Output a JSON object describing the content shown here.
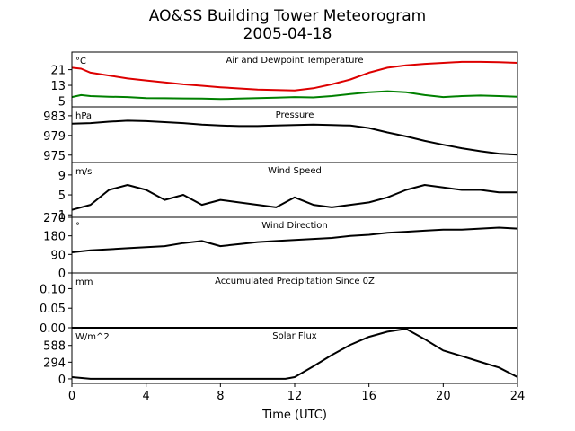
{
  "title": "AO&SS Building Tower Meteorogram",
  "subtitle": "2005-04-18",
  "xlabel": "Time (UTC)",
  "x_ticks": [
    "0",
    "4",
    "8",
    "12",
    "16",
    "20",
    "24"
  ],
  "chart_data": [
    {
      "type": "line",
      "title": "Air and Dewpoint Temperature",
      "unit": "°C",
      "x": [
        0,
        0.5,
        1,
        2,
        3,
        4,
        5,
        6,
        7,
        8,
        9,
        10,
        11,
        12,
        13,
        14,
        15,
        16,
        17,
        18,
        19,
        20,
        21,
        22,
        23,
        24
      ],
      "series": [
        {
          "color": "#dd0000",
          "values": [
            22,
            21.5,
            19.5,
            18,
            16.5,
            15.5,
            14.5,
            13.5,
            12.8,
            12,
            11.4,
            10.8,
            10.6,
            10.4,
            11.5,
            13.5,
            16,
            19.5,
            22,
            23.2,
            24,
            24.5,
            25,
            25,
            24.8,
            24.5
          ]
        },
        {
          "color": "#008000",
          "values": [
            7,
            8,
            7.5,
            7.2,
            7,
            6.5,
            6.4,
            6.3,
            6.2,
            6,
            6.2,
            6.5,
            6.7,
            7,
            6.8,
            7.5,
            8.5,
            9.5,
            10,
            9.5,
            8,
            7,
            7.5,
            7.8,
            7.5,
            7.2
          ]
        }
      ],
      "yticks": [
        5,
        13,
        21
      ],
      "ylim": [
        2,
        30
      ]
    },
    {
      "type": "line",
      "title": "Pressure",
      "unit": "hPa",
      "x": [
        0,
        1,
        2,
        3,
        4,
        5,
        6,
        7,
        8,
        9,
        10,
        11,
        12,
        13,
        14,
        15,
        16,
        17,
        18,
        19,
        20,
        21,
        22,
        23,
        24
      ],
      "series": [
        {
          "color": "#000000",
          "values": [
            981.4,
            981.5,
            981.8,
            982.0,
            981.9,
            981.7,
            981.5,
            981.2,
            981.0,
            980.9,
            980.9,
            981.0,
            981.1,
            981.2,
            981.1,
            981.0,
            980.5,
            979.6,
            978.8,
            977.9,
            977.1,
            976.4,
            975.8,
            975.3,
            975.1
          ]
        }
      ],
      "yticks": [
        975,
        979,
        983
      ],
      "ylim": [
        973.5,
        984.8
      ]
    },
    {
      "type": "line",
      "title": "Wind Speed",
      "unit": "m/s",
      "x": [
        0,
        1,
        2,
        3,
        4,
        5,
        6,
        7,
        8,
        9,
        10,
        11,
        12,
        13,
        14,
        15,
        16,
        17,
        18,
        19,
        20,
        21,
        22,
        23,
        24
      ],
      "series": [
        {
          "color": "#000000",
          "values": [
            2,
            3,
            6,
            7,
            6,
            4,
            5,
            3,
            4,
            3.5,
            3,
            2.5,
            4.5,
            3,
            2.5,
            3,
            3.5,
            4.5,
            6,
            7,
            6.5,
            6,
            6,
            5.5,
            5.5
          ]
        }
      ],
      "yticks": [
        1,
        5,
        9
      ],
      "ylim": [
        0.5,
        11.5
      ]
    },
    {
      "type": "line",
      "title": "Wind Direction",
      "unit": "°",
      "x": [
        0,
        1,
        2,
        3,
        4,
        5,
        6,
        7,
        8,
        9,
        10,
        11,
        12,
        13,
        14,
        15,
        16,
        17,
        18,
        19,
        20,
        21,
        22,
        23,
        24
      ],
      "series": [
        {
          "color": "#000000",
          "values": [
            100,
            110,
            115,
            120,
            125,
            130,
            145,
            155,
            130,
            140,
            150,
            155,
            160,
            165,
            170,
            180,
            185,
            195,
            200,
            205,
            210,
            210,
            215,
            220,
            215
          ]
        }
      ],
      "yticks": [
        0,
        90,
        180,
        270
      ],
      "ylim": [
        0,
        270
      ]
    },
    {
      "type": "line",
      "title": "Accumulated Precipitation Since 0Z",
      "unit": "mm",
      "x": [
        0,
        24
      ],
      "series": [
        {
          "color": "#000000",
          "values": [
            0,
            0
          ]
        }
      ],
      "yticks": [
        "0.00",
        "0.05",
        "0.10"
      ],
      "ylim": [
        0,
        0.14
      ]
    },
    {
      "type": "line",
      "title": "Solar Flux",
      "unit": "W/m^2",
      "x": [
        0,
        1,
        2,
        4,
        6,
        8,
        10,
        11.5,
        12,
        13,
        14,
        15,
        16,
        17,
        18,
        19,
        20,
        21,
        22,
        23,
        24
      ],
      "series": [
        {
          "color": "#000000",
          "values": [
            30,
            0,
            0,
            0,
            0,
            0,
            0,
            0,
            30,
            220,
            420,
            600,
            740,
            830,
            880,
            700,
            500,
            400,
            300,
            200,
            30
          ]
        }
      ],
      "yticks": [
        0,
        294,
        588
      ],
      "ylim": [
        -80,
        900
      ]
    }
  ]
}
